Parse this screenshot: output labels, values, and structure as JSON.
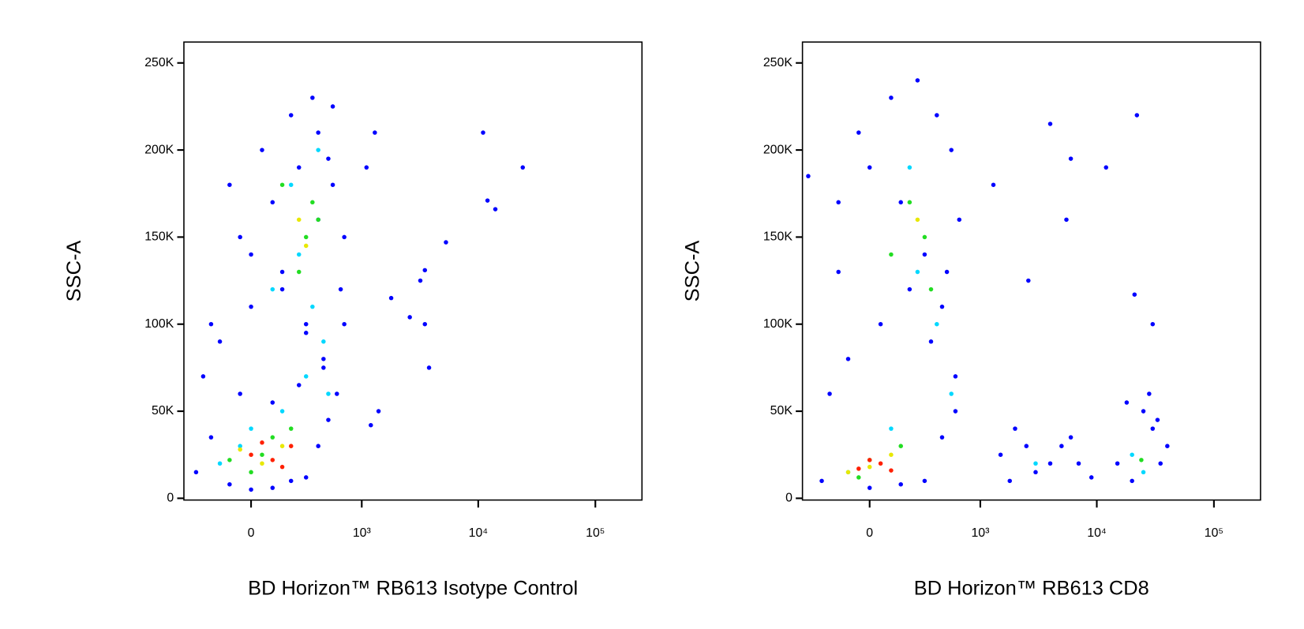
{
  "chart_data": [
    {
      "type": "scatter",
      "xscale": "biexponential",
      "xlabel": "BD Horizon™ RB613 Isotype Control",
      "ylabel": "SSC-A",
      "xlim": [
        -400,
        250000
      ],
      "ylim": [
        -1000,
        262000
      ],
      "xticks": [
        0,
        {
          "value": 1000,
          "label": "10³"
        },
        {
          "value": 10000,
          "label": "10⁴"
        },
        {
          "value": 100000,
          "label": "10⁵"
        }
      ],
      "yticks": [
        0,
        {
          "value": 50000,
          "label": "50K"
        },
        {
          "value": 100000,
          "label": "100K"
        },
        {
          "value": 150000,
          "label": "150K"
        },
        {
          "value": 200000,
          "label": "200K"
        },
        {
          "value": 250000,
          "label": "250K"
        }
      ],
      "series": [
        {
          "color": "#0000ff",
          "x": [
            -300,
            -200,
            -100,
            0,
            100,
            200,
            300,
            400,
            500,
            600,
            -250,
            -150,
            0,
            150,
            300,
            450,
            650,
            -50,
            100,
            250,
            400,
            550,
            -100,
            50,
            200,
            350,
            500,
            700,
            0,
            150,
            300,
            450,
            -200,
            -50,
            100,
            250,
            400,
            550,
            700,
            1300,
            1100,
            11000,
            24000,
            12000,
            14000,
            5300,
            3500,
            3200,
            1800,
            2600,
            3500,
            3800,
            1400,
            1200
          ],
          "values": [
            15000,
            35000,
            8000,
            5000,
            6000,
            10000,
            12000,
            30000,
            45000,
            60000,
            70000,
            90000,
            110000,
            130000,
            100000,
            80000,
            120000,
            150000,
            170000,
            190000,
            210000,
            225000,
            180000,
            200000,
            220000,
            230000,
            195000,
            150000,
            140000,
            120000,
            95000,
            75000,
            100000,
            60000,
            55000,
            65000,
            160000,
            180000,
            100000,
            210000,
            190000,
            210000,
            190000,
            171000,
            166000,
            147000,
            131000,
            125000,
            115000,
            104000,
            100000,
            75000,
            50000,
            42000
          ]
        },
        {
          "color": "#00d8ff",
          "x": [
            -150,
            0,
            150,
            300,
            450,
            100,
            250,
            400,
            200,
            350,
            -50,
            500
          ],
          "values": [
            20000,
            40000,
            50000,
            70000,
            90000,
            120000,
            140000,
            200000,
            180000,
            110000,
            30000,
            60000
          ]
        },
        {
          "color": "#22dd22",
          "x": [
            0,
            100,
            200,
            300,
            350,
            250,
            150,
            50,
            400,
            -100
          ],
          "values": [
            15000,
            35000,
            40000,
            150000,
            170000,
            130000,
            180000,
            25000,
            160000,
            22000
          ]
        },
        {
          "color": "#e8e800",
          "x": [
            50,
            150,
            250,
            300,
            -50
          ],
          "values": [
            20000,
            30000,
            160000,
            145000,
            28000
          ]
        },
        {
          "color": "#ff2000",
          "x": [
            0,
            100,
            200,
            50,
            150
          ],
          "values": [
            25000,
            22000,
            30000,
            32000,
            18000
          ]
        }
      ]
    },
    {
      "type": "scatter",
      "xscale": "biexponential",
      "xlabel": "BD Horizon™ RB613 CD8",
      "ylabel": "SSC-A",
      "xlim": [
        -400,
        250000
      ],
      "ylim": [
        -1000,
        262000
      ],
      "xticks": [
        0,
        {
          "value": 1000,
          "label": "10³"
        },
        {
          "value": 10000,
          "label": "10⁴"
        },
        {
          "value": 100000,
          "label": "10⁵"
        }
      ],
      "yticks": [
        0,
        {
          "value": 50000,
          "label": "50K"
        },
        {
          "value": 100000,
          "label": "100K"
        },
        {
          "value": 150000,
          "label": "150K"
        },
        {
          "value": 200000,
          "label": "200K"
        },
        {
          "value": 250000,
          "label": "250K"
        }
      ],
      "series": [
        {
          "color": "#0000ff",
          "x": [
            -350,
            -250,
            -150,
            0,
            150,
            300,
            450,
            600,
            -200,
            -100,
            50,
            200,
            350,
            500,
            650,
            -50,
            100,
            250,
            400,
            550,
            -150,
            0,
            150,
            300,
            450,
            600,
            1500,
            2000,
            3000,
            5000,
            7000,
            1800,
            2500,
            4000,
            6000,
            9000,
            15000,
            20000,
            25000,
            30000,
            35000,
            40000,
            18000,
            28000,
            33000,
            22000,
            4000,
            6000,
            12000,
            21000,
            30000,
            1300,
            5500,
            2600
          ],
          "values": [
            185000,
            10000,
            130000,
            6000,
            8000,
            10000,
            35000,
            50000,
            60000,
            80000,
            100000,
            120000,
            90000,
            130000,
            160000,
            210000,
            230000,
            240000,
            220000,
            200000,
            170000,
            190000,
            170000,
            140000,
            110000,
            70000,
            25000,
            40000,
            15000,
            30000,
            20000,
            10000,
            30000,
            20000,
            35000,
            12000,
            20000,
            10000,
            50000,
            40000,
            20000,
            30000,
            55000,
            60000,
            45000,
            220000,
            215000,
            195000,
            190000,
            117000,
            100000,
            180000,
            160000,
            125000
          ]
        },
        {
          "color": "#00d8ff",
          "x": [
            -100,
            100,
            250,
            400,
            550,
            200,
            20000,
            25000,
            3000
          ],
          "values": [
            15000,
            40000,
            130000,
            100000,
            60000,
            190000,
            25000,
            15000,
            20000
          ]
        },
        {
          "color": "#22dd22",
          "x": [
            0,
            150,
            300,
            200,
            350,
            100,
            24000,
            -50
          ],
          "values": [
            22000,
            30000,
            150000,
            170000,
            120000,
            140000,
            22000,
            12000
          ]
        },
        {
          "color": "#e8e800",
          "x": [
            0,
            100,
            250,
            -100
          ],
          "values": [
            18000,
            25000,
            160000,
            15000
          ]
        },
        {
          "color": "#ff2000",
          "x": [
            -50,
            50,
            100,
            0
          ],
          "values": [
            17000,
            20000,
            16000,
            22000
          ]
        }
      ]
    }
  ]
}
